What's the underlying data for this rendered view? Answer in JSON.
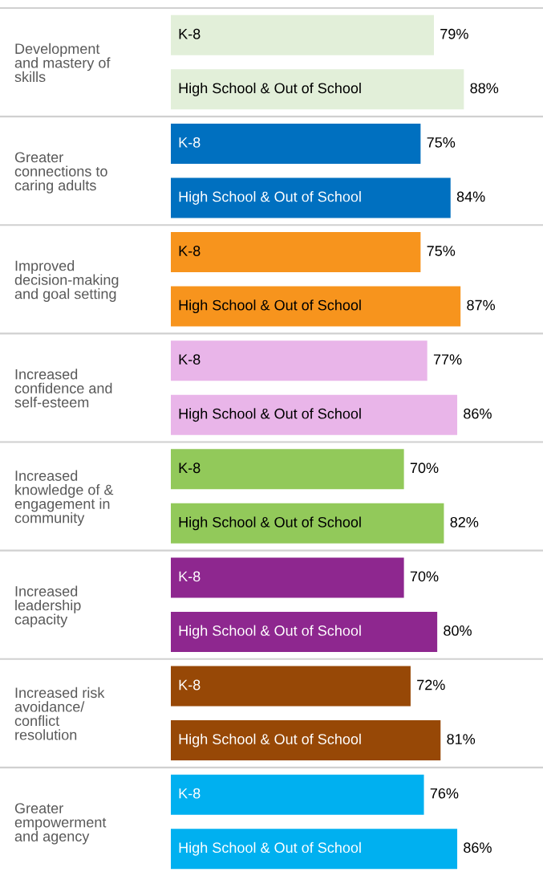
{
  "chart_data": {
    "type": "bar",
    "orientation": "horizontal",
    "categories": [
      "Development\nand mastery of\nskills",
      "Greater\nconnections to\ncaring adults",
      "Improved\ndecision-making\nand goal setting",
      "Increased\nconfidence and\nself-esteem",
      "Increased\nknowledge of &\nengagement in\ncommunity",
      "Increased\nleadership\ncapacity",
      "Increased risk\navoidance/\nconflict\nresolution",
      "Greater\nempowerment\nand agency"
    ],
    "series": [
      {
        "name": "K-8",
        "colors": [
          "#e2efd9",
          "#0070c0",
          "#f7941d",
          "#e9b5e9",
          "#92c95a",
          "#8e278f",
          "#974806",
          "#00b0f0"
        ],
        "values": [
          79,
          75,
          75,
          77,
          70,
          70,
          72,
          76
        ],
        "value_labels": [
          "79%",
          "75%",
          "75%",
          "77%",
          "70%",
          "70%",
          "72%",
          "76%"
        ]
      },
      {
        "name": "High School & Out of School",
        "colors": [
          "#e2efd9",
          "#0070c0",
          "#f7941d",
          "#e9b5e9",
          "#92c95a",
          "#8e278f",
          "#974806",
          "#00b0f0"
        ],
        "values": [
          88,
          84,
          87,
          86,
          82,
          80,
          81,
          86
        ],
        "value_labels": [
          "88%",
          "84%",
          "87%",
          "86%",
          "82%",
          "80%",
          "81%",
          "86%"
        ]
      }
    ],
    "legend": false
  }
}
